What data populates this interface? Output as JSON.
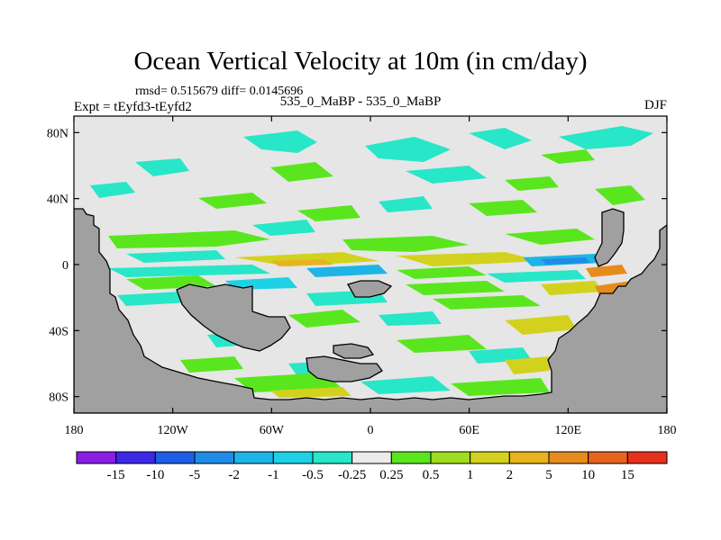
{
  "chart_data": {
    "type": "heatmap",
    "title": "Ocean Vertical Velocity at 10m (in cm/day)",
    "stats_text": "rmsd= 0.515679 diff= 0.0145696",
    "left_label": "Expt = tEyfd3-tEyfd2",
    "center_label": "535_0_MaBP - 535_0_MaBP",
    "right_label": "DJF",
    "x_ticks": [
      "180",
      "120W",
      "60W",
      "0",
      "60E",
      "120E",
      "180"
    ],
    "x_tick_values": [
      -180,
      -120,
      -60,
      0,
      60,
      120,
      180
    ],
    "y_ticks": [
      "80N",
      "40N",
      "0",
      "40S",
      "80S"
    ],
    "y_tick_values": [
      80,
      40,
      0,
      -40,
      -80
    ],
    "xlim": [
      -180,
      180
    ],
    "ylim": [
      -90,
      90
    ],
    "colorbar": {
      "labels": [
        "-15",
        "-10",
        "-5",
        "-2",
        "-1",
        "-0.5",
        "-0.25",
        "0.25",
        "0.5",
        "1",
        "2",
        "5",
        "10",
        "15"
      ],
      "colors": [
        "#8a1ee6",
        "#3c28e6",
        "#1e5fe6",
        "#1e8ce6",
        "#1eb4e6",
        "#1ed2e6",
        "#28e6c8",
        "#ebebeb",
        "#5ae61e",
        "#a0dc1e",
        "#d2d21e",
        "#e6b41e",
        "#e68c1e",
        "#e6641e",
        "#e6321e"
      ]
    },
    "land_color": "#a0a0a0",
    "background_color": "#e6e6e6"
  }
}
